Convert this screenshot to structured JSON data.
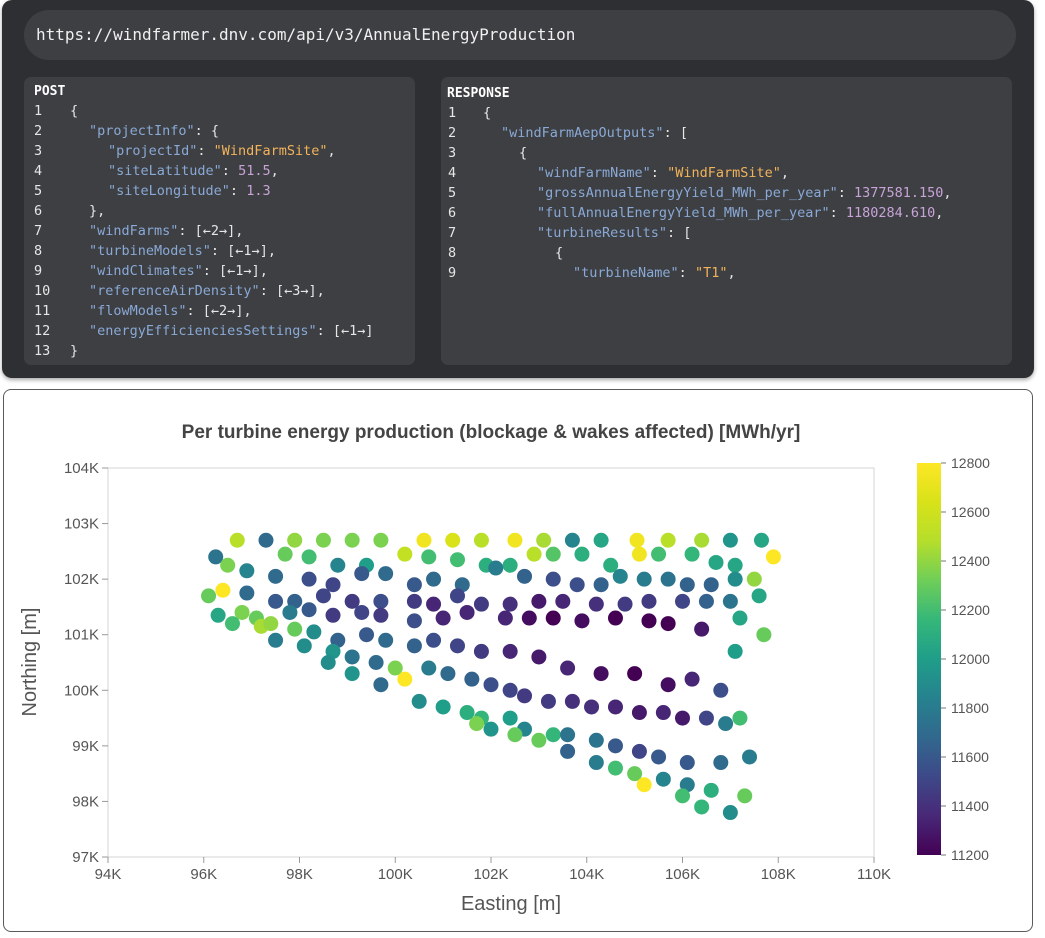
{
  "url": "https://windfarmer.dnv.com/api/v3/AnnualEnergyProduction",
  "post": {
    "title": "POST",
    "lines": [
      {
        "n": "1",
        "indent": 0,
        "parts": [
          {
            "c": "p",
            "t": "{"
          }
        ]
      },
      {
        "n": "2",
        "indent": 1,
        "parts": [
          {
            "c": "k",
            "t": "\"projectInfo\""
          },
          {
            "c": "p",
            "t": ": {"
          }
        ]
      },
      {
        "n": "3",
        "indent": 2,
        "parts": [
          {
            "c": "k",
            "t": "\"projectId\""
          },
          {
            "c": "p",
            "t": ": "
          },
          {
            "c": "s",
            "t": "\"WindFarmSite\""
          },
          {
            "c": "p",
            "t": ","
          }
        ]
      },
      {
        "n": "4",
        "indent": 2,
        "parts": [
          {
            "c": "k",
            "t": "\"siteLatitude\""
          },
          {
            "c": "p",
            "t": ": "
          },
          {
            "c": "n",
            "t": "51.5"
          },
          {
            "c": "p",
            "t": ","
          }
        ]
      },
      {
        "n": "5",
        "indent": 2,
        "parts": [
          {
            "c": "k",
            "t": "\"siteLongitude\""
          },
          {
            "c": "p",
            "t": ": "
          },
          {
            "c": "n",
            "t": "1.3"
          }
        ]
      },
      {
        "n": "6",
        "indent": 1,
        "parts": [
          {
            "c": "p",
            "t": "},"
          }
        ]
      },
      {
        "n": "7",
        "indent": 1,
        "parts": [
          {
            "c": "k",
            "t": "\"windFarms\""
          },
          {
            "c": "p",
            "t": ": [←2→],"
          }
        ]
      },
      {
        "n": "8",
        "indent": 1,
        "parts": [
          {
            "c": "k",
            "t": "\"turbineModels\""
          },
          {
            "c": "p",
            "t": ": [←1→],"
          }
        ]
      },
      {
        "n": "9",
        "indent": 1,
        "parts": [
          {
            "c": "k",
            "t": "\"windClimates\""
          },
          {
            "c": "p",
            "t": ": [←1→],"
          }
        ]
      },
      {
        "n": "10",
        "indent": 1,
        "parts": [
          {
            "c": "k",
            "t": "\"referenceAirDensity\""
          },
          {
            "c": "p",
            "t": ": [←3→],"
          }
        ]
      },
      {
        "n": "11",
        "indent": 1,
        "parts": [
          {
            "c": "k",
            "t": "\"flowModels\""
          },
          {
            "c": "p",
            "t": ": [←2→],"
          }
        ]
      },
      {
        "n": "12",
        "indent": 1,
        "parts": [
          {
            "c": "k",
            "t": "\"energyEfficienciesSettings\""
          },
          {
            "c": "p",
            "t": ": [←1→]"
          }
        ]
      },
      {
        "n": "13",
        "indent": 0,
        "parts": [
          {
            "c": "p",
            "t": "}"
          }
        ]
      }
    ]
  },
  "response": {
    "title": "RESPONSE",
    "lines": [
      {
        "n": "1",
        "indent": 0,
        "parts": [
          {
            "c": "p",
            "t": "{"
          }
        ]
      },
      {
        "n": "2",
        "indent": 1,
        "parts": [
          {
            "c": "k",
            "t": "\"windFarmAepOutputs\""
          },
          {
            "c": "p",
            "t": ": ["
          }
        ]
      },
      {
        "n": "3",
        "indent": 2,
        "parts": [
          {
            "c": "p",
            "t": "{"
          }
        ]
      },
      {
        "n": "4",
        "indent": 3,
        "parts": [
          {
            "c": "k",
            "t": "\"windFarmName\""
          },
          {
            "c": "p",
            "t": ": "
          },
          {
            "c": "s",
            "t": "\"WindFarmSite\""
          },
          {
            "c": "p",
            "t": ","
          }
        ]
      },
      {
        "n": "5",
        "indent": 3,
        "parts": [
          {
            "c": "k",
            "t": "\"grossAnnualEnergyYield_MWh_per_year\""
          },
          {
            "c": "p",
            "t": ": "
          },
          {
            "c": "n",
            "t": "1377581.150"
          },
          {
            "c": "p",
            "t": ","
          }
        ]
      },
      {
        "n": "6",
        "indent": 3,
        "parts": [
          {
            "c": "k",
            "t": "\"fullAnnualEnergyYield_MWh_per_year\""
          },
          {
            "c": "p",
            "t": ": "
          },
          {
            "c": "n",
            "t": "1180284.610"
          },
          {
            "c": "p",
            "t": ","
          }
        ]
      },
      {
        "n": "7",
        "indent": 3,
        "parts": [
          {
            "c": "k",
            "t": "\"turbineResults\""
          },
          {
            "c": "p",
            "t": ": ["
          }
        ]
      },
      {
        "n": "8",
        "indent": 4,
        "parts": [
          {
            "c": "p",
            "t": "{"
          }
        ]
      },
      {
        "n": "9",
        "indent": 5,
        "parts": [
          {
            "c": "k",
            "t": "\"turbineName\""
          },
          {
            "c": "p",
            "t": ": "
          },
          {
            "c": "s",
            "t": "\"T1\""
          },
          {
            "c": "p",
            "t": ","
          }
        ]
      }
    ]
  },
  "chart_data": {
    "type": "scatter",
    "title": "Per turbine energy production (blockage & wakes affected) [MWh/yr]",
    "xlabel": "Easting [m]",
    "ylabel": "Northing [m]",
    "xlim": [
      94000,
      110000
    ],
    "ylim": [
      97000,
      104000
    ],
    "xticks": [
      94000,
      96000,
      98000,
      100000,
      102000,
      104000,
      106000,
      108000,
      110000
    ],
    "xtick_labels": [
      "94K",
      "96K",
      "98K",
      "100K",
      "102K",
      "104K",
      "106K",
      "108K",
      "110K"
    ],
    "yticks": [
      97000,
      98000,
      99000,
      100000,
      101000,
      102000,
      103000,
      104000
    ],
    "ytick_labels": [
      "97K",
      "98K",
      "99K",
      "100K",
      "101K",
      "102K",
      "103K",
      "104K"
    ],
    "colorbar": {
      "min": 11200,
      "max": 12800,
      "ticks": [
        11200,
        11400,
        11600,
        11800,
        12000,
        12200,
        12400,
        12600,
        12800
      ],
      "tick_labels": [
        "11200",
        "11400",
        "11600",
        "11800",
        "12000",
        "12200",
        "12400",
        "12600",
        "12800"
      ],
      "colormap": "viridis"
    },
    "grid": false,
    "points": [
      [
        96700,
        102700,
        12500
      ],
      [
        97300,
        102700,
        11700
      ],
      [
        97900,
        102700,
        12400
      ],
      [
        98500,
        102700,
        12350
      ],
      [
        99100,
        102700,
        12350
      ],
      [
        99700,
        102700,
        12350
      ],
      [
        100600,
        102700,
        12750
      ],
      [
        101200,
        102700,
        12650
      ],
      [
        101800,
        102700,
        12500
      ],
      [
        102500,
        102700,
        12750
      ],
      [
        103100,
        102700,
        12450
      ],
      [
        103700,
        102700,
        11850
      ],
      [
        104300,
        102700,
        12050
      ],
      [
        105050,
        102700,
        12750
      ],
      [
        105700,
        102700,
        12500
      ],
      [
        106400,
        102700,
        12450
      ],
      [
        107000,
        102700,
        11950
      ],
      [
        107650,
        102700,
        12050
      ],
      [
        96250,
        102400,
        11750
      ],
      [
        96500,
        102250,
        12350
      ],
      [
        97700,
        102450,
        12300
      ],
      [
        98200,
        102400,
        12200
      ],
      [
        98800,
        102250,
        11850
      ],
      [
        99400,
        102250,
        12000
      ],
      [
        100200,
        102450,
        12550
      ],
      [
        100700,
        102400,
        12200
      ],
      [
        101300,
        102350,
        12200
      ],
      [
        101900,
        102250,
        12100
      ],
      [
        102400,
        102250,
        12100
      ],
      [
        102900,
        102450,
        12500
      ],
      [
        103300,
        102450,
        12250
      ],
      [
        103900,
        102450,
        12100
      ],
      [
        104500,
        102250,
        12100
      ],
      [
        105100,
        102450,
        12750
      ],
      [
        105500,
        102450,
        12200
      ],
      [
        106200,
        102450,
        12150
      ],
      [
        106700,
        102300,
        12050
      ],
      [
        107100,
        102250,
        12050
      ],
      [
        107900,
        102400,
        12800
      ],
      [
        96900,
        102150,
        11850
      ],
      [
        97500,
        102050,
        11700
      ],
      [
        98200,
        102000,
        11550
      ],
      [
        98700,
        101900,
        11500
      ],
      [
        99300,
        102100,
        11600
      ],
      [
        99800,
        102100,
        11700
      ],
      [
        100400,
        101900,
        11600
      ],
      [
        100800,
        102000,
        11700
      ],
      [
        101400,
        101900,
        11700
      ],
      [
        102100,
        102200,
        11800
      ],
      [
        102700,
        102050,
        11650
      ],
      [
        103300,
        102000,
        11550
      ],
      [
        103800,
        101900,
        11550
      ],
      [
        104300,
        101900,
        11650
      ],
      [
        104700,
        102050,
        11850
      ],
      [
        105200,
        102000,
        11800
      ],
      [
        105700,
        102000,
        11750
      ],
      [
        106100,
        101900,
        11650
      ],
      [
        106600,
        101900,
        11650
      ],
      [
        107100,
        102000,
        11900
      ],
      [
        107500,
        102000,
        12400
      ],
      [
        96100,
        101700,
        12300
      ],
      [
        96400,
        101800,
        12800
      ],
      [
        96900,
        101750,
        11700
      ],
      [
        97500,
        101600,
        11600
      ],
      [
        97900,
        101600,
        11650
      ],
      [
        98500,
        101700,
        11500
      ],
      [
        99100,
        101600,
        11450
      ],
      [
        99700,
        101600,
        11550
      ],
      [
        100400,
        101600,
        11450
      ],
      [
        100800,
        101550,
        11350
      ],
      [
        101300,
        101700,
        11500
      ],
      [
        101800,
        101550,
        11450
      ],
      [
        102400,
        101550,
        11400
      ],
      [
        103000,
        101600,
        11300
      ],
      [
        103500,
        101600,
        11350
      ],
      [
        104200,
        101550,
        11400
      ],
      [
        104800,
        101550,
        11450
      ],
      [
        105300,
        101600,
        11450
      ],
      [
        106000,
        101600,
        11500
      ],
      [
        106500,
        101600,
        11650
      ],
      [
        107000,
        101600,
        11750
      ],
      [
        107600,
        101700,
        12050
      ],
      [
        96300,
        101350,
        12050
      ],
      [
        96800,
        101400,
        12350
      ],
      [
        97100,
        101300,
        12300
      ],
      [
        97800,
        101400,
        11800
      ],
      [
        98200,
        101450,
        11600
      ],
      [
        98700,
        101350,
        11450
      ],
      [
        99300,
        101400,
        11500
      ],
      [
        99700,
        101350,
        11450
      ],
      [
        100400,
        101250,
        11550
      ],
      [
        101000,
        101300,
        11350
      ],
      [
        101500,
        101400,
        11350
      ],
      [
        102300,
        101300,
        11350
      ],
      [
        102800,
        101300,
        11250
      ],
      [
        103300,
        101300,
        11200
      ],
      [
        103900,
        101250,
        11250
      ],
      [
        104600,
        101300,
        11200
      ],
      [
        105300,
        101250,
        11200
      ],
      [
        105700,
        101200,
        11200
      ],
      [
        106400,
        101100,
        11300
      ],
      [
        107200,
        101300,
        12050
      ],
      [
        96600,
        101200,
        12200
      ],
      [
        97200,
        101150,
        12450
      ],
      [
        97400,
        101200,
        12400
      ],
      [
        97900,
        101100,
        12300
      ],
      [
        98300,
        101050,
        11900
      ],
      [
        98800,
        100900,
        11650
      ],
      [
        99400,
        101000,
        11600
      ],
      [
        99800,
        100900,
        11700
      ],
      [
        100400,
        100800,
        11650
      ],
      [
        100800,
        100900,
        11550
      ],
      [
        101300,
        100800,
        11500
      ],
      [
        101800,
        100700,
        11450
      ],
      [
        102400,
        100700,
        11350
      ],
      [
        103000,
        100600,
        11300
      ],
      [
        103600,
        100400,
        11350
      ],
      [
        104300,
        100300,
        11250
      ],
      [
        105000,
        100300,
        11200
      ],
      [
        105700,
        100100,
        11250
      ],
      [
        106200,
        100200,
        11350
      ],
      [
        106800,
        100000,
        11550
      ],
      [
        107100,
        100700,
        12000
      ],
      [
        107700,
        101000,
        12300
      ],
      [
        97500,
        100900,
        11800
      ],
      [
        98100,
        100800,
        11900
      ],
      [
        98700,
        100700,
        11950
      ],
      [
        99100,
        100600,
        11750
      ],
      [
        99600,
        100500,
        11700
      ],
      [
        100000,
        100400,
        12350
      ],
      [
        100200,
        100200,
        12800
      ],
      [
        100700,
        100400,
        11800
      ],
      [
        101100,
        100300,
        11700
      ],
      [
        101600,
        100200,
        11650
      ],
      [
        102000,
        100100,
        11550
      ],
      [
        102400,
        100000,
        11500
      ],
      [
        102700,
        99900,
        11450
      ],
      [
        103200,
        99800,
        11450
      ],
      [
        103700,
        99800,
        11400
      ],
      [
        104100,
        99700,
        11400
      ],
      [
        104600,
        99700,
        11350
      ],
      [
        105100,
        99600,
        11300
      ],
      [
        105600,
        99600,
        11350
      ],
      [
        106000,
        99500,
        11300
      ],
      [
        106500,
        99500,
        11500
      ],
      [
        106900,
        99400,
        11800
      ],
      [
        107200,
        99500,
        12200
      ],
      [
        98600,
        100500,
        11900
      ],
      [
        99100,
        100300,
        11950
      ],
      [
        99700,
        100100,
        11700
      ],
      [
        100500,
        99800,
        11900
      ],
      [
        101000,
        99700,
        12000
      ],
      [
        101500,
        99600,
        12100
      ],
      [
        101800,
        99500,
        12150
      ],
      [
        102400,
        99500,
        12000
      ],
      [
        102700,
        99300,
        11850
      ],
      [
        103300,
        99200,
        12150
      ],
      [
        103600,
        99200,
        11750
      ],
      [
        104200,
        99100,
        11750
      ],
      [
        104600,
        99000,
        11600
      ],
      [
        105100,
        98900,
        11500
      ],
      [
        105500,
        98800,
        11600
      ],
      [
        106100,
        98700,
        11600
      ],
      [
        106800,
        98700,
        11700
      ],
      [
        107400,
        98800,
        11800
      ],
      [
        101700,
        99400,
        12350
      ],
      [
        102000,
        99300,
        11950
      ],
      [
        102500,
        99200,
        12300
      ],
      [
        103000,
        99100,
        12300
      ],
      [
        103600,
        98900,
        11650
      ],
      [
        104200,
        98700,
        11800
      ],
      [
        104600,
        98600,
        12200
      ],
      [
        105000,
        98500,
        12300
      ],
      [
        105600,
        98400,
        11850
      ],
      [
        106100,
        98300,
        11800
      ],
      [
        106600,
        98200,
        12100
      ],
      [
        107300,
        98100,
        12300
      ],
      [
        105200,
        98300,
        12800
      ],
      [
        106000,
        98100,
        12200
      ],
      [
        106400,
        97900,
        12150
      ],
      [
        107000,
        97800,
        11900
      ]
    ]
  }
}
